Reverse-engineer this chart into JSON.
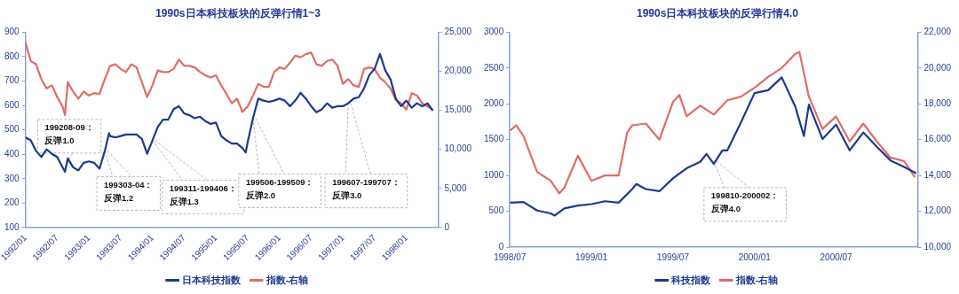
{
  "chart_data": [
    {
      "type": "line",
      "title": "1990s日本科技板块的反弹行情1~3",
      "legend": "bottom",
      "grid": false,
      "marker": "none",
      "line_style": "solid",
      "xlim": [
        "1992-01",
        "1998-07"
      ],
      "xticks": [
        {
          "value": "1992-01",
          "label": "1992/01"
        },
        {
          "value": "1992-07",
          "label": "1992/07"
        },
        {
          "value": "1993-01",
          "label": "1993/01"
        },
        {
          "value": "1993-07",
          "label": "1993/07"
        },
        {
          "value": "1994-01",
          "label": "1994/01"
        },
        {
          "value": "1994-07",
          "label": "1994/07"
        },
        {
          "value": "1995-01",
          "label": "1995/01"
        },
        {
          "value": "1995-07",
          "label": "1995/07"
        },
        {
          "value": "1996-01",
          "label": "1996/01"
        },
        {
          "value": "1996-07",
          "label": "1996/07"
        },
        {
          "value": "1997-01",
          "label": "1997/01"
        },
        {
          "value": "1997-07",
          "label": "1997/07"
        },
        {
          "value": "1998-01",
          "label": "1998/01"
        }
      ],
      "ylim": [
        100,
        900
      ],
      "yticks": [
        100,
        200,
        300,
        400,
        500,
        600,
        700,
        800,
        900
      ],
      "y2lim": [
        0,
        25000
      ],
      "y2ticks": [
        {
          "value": 0,
          "label": "0"
        },
        {
          "value": 5000,
          "label": "5,000"
        },
        {
          "value": 10000,
          "label": "10,000"
        },
        {
          "value": 15000,
          "label": "15,000"
        },
        {
          "value": 20000,
          "label": "20,000"
        },
        {
          "value": 25000,
          "label": "25,000"
        }
      ],
      "series": [
        {
          "name": "日本科技指数",
          "color": "#1b3a8f",
          "x": [
            "1992-01",
            "1992-02",
            "1992-03",
            "1992-04",
            "1992-05",
            "1992-06",
            "1992-07",
            "1992-08",
            "1992-08-15",
            "1992-09",
            "1992-10",
            "1992-11",
            "1992-12",
            "1993-01",
            "1993-02",
            "1993-03",
            "1993-04",
            "1993-04-25",
            "1993-05",
            "1993-06",
            "1993-07",
            "1993-08",
            "1993-09",
            "1993-10",
            "1993-11",
            "1993-12",
            "1994-01",
            "1994-02",
            "1994-03",
            "1994-04",
            "1994-05",
            "1994-06",
            "1994-07",
            "1994-08",
            "1994-09",
            "1994-10",
            "1994-11",
            "1994-12",
            "1995-01",
            "1995-02",
            "1995-03",
            "1995-04",
            "1995-05",
            "1995-06",
            "1995-06-20",
            "1995-07",
            "1995-08",
            "1995-09",
            "1995-10",
            "1995-11",
            "1995-12",
            "1996-01",
            "1996-02",
            "1996-03",
            "1996-04",
            "1996-05",
            "1996-06",
            "1996-07",
            "1996-08",
            "1996-09",
            "1996-10",
            "1996-11",
            "1996-12",
            "1997-01",
            "1997-02",
            "1997-03",
            "1997-04",
            "1997-05",
            "1997-06",
            "1997-07",
            "1997-08",
            "1997-09",
            "1997-10",
            "1997-11",
            "1997-12",
            "1998-01",
            "1998-02",
            "1998-03",
            "1998-04",
            "1998-05",
            "1998-06"
          ],
          "values": [
            469,
            457,
            414,
            389,
            420,
            402,
            389,
            347,
            328,
            383,
            347,
            334,
            365,
            371,
            365,
            341,
            414,
            487,
            475,
            469,
            475,
            481,
            481,
            481,
            463,
            402,
            457,
            512,
            542,
            542,
            585,
            597,
            567,
            560,
            548,
            554,
            536,
            524,
            530,
            475,
            457,
            444,
            444,
            426,
            408,
            450,
            548,
            628,
            620,
            615,
            620,
            628,
            620,
            597,
            620,
            652,
            628,
            597,
            572,
            584,
            609,
            591,
            597,
            597,
            609,
            628,
            634,
            670,
            725,
            750,
            811,
            744,
            707,
            628,
            597,
            620,
            591,
            609,
            597,
            609,
            578
          ]
        },
        {
          "name": "指数-右轴",
          "color": "#e06c66",
          "axis": "y2",
          "x": [
            "1992-01",
            "1992-02",
            "1992-03",
            "1992-04",
            "1992-05",
            "1992-06",
            "1992-07",
            "1992-08",
            "1992-08-15",
            "1992-09",
            "1992-10",
            "1992-11",
            "1992-12",
            "1993-01",
            "1993-02",
            "1993-03",
            "1993-04",
            "1993-05",
            "1993-06",
            "1993-07",
            "1993-08",
            "1993-09",
            "1993-10",
            "1993-11",
            "1993-12",
            "1994-01",
            "1994-02",
            "1994-03",
            "1994-04",
            "1994-05",
            "1994-06",
            "1994-07",
            "1994-08",
            "1994-09",
            "1994-10",
            "1994-11",
            "1994-12",
            "1995-01",
            "1995-02",
            "1995-03",
            "1995-04",
            "1995-05",
            "1995-06",
            "1995-07",
            "1995-08",
            "1995-09",
            "1995-10",
            "1995-11",
            "1995-12",
            "1996-01",
            "1996-02",
            "1996-03",
            "1996-04",
            "1996-05",
            "1996-06",
            "1996-07",
            "1996-08",
            "1996-09",
            "1996-10",
            "1996-11",
            "1996-12",
            "1997-01",
            "1997-02",
            "1997-03",
            "1997-04",
            "1997-05",
            "1997-06",
            "1997-07",
            "1997-08",
            "1997-09",
            "1997-10",
            "1997-11",
            "1997-12",
            "1998-01",
            "1998-02",
            "1998-03",
            "1998-04",
            "1998-05",
            "1998-06"
          ],
          "values": [
            23700,
            21300,
            20900,
            19000,
            17800,
            18200,
            16700,
            15500,
            14400,
            18600,
            17400,
            16500,
            17400,
            16900,
            17200,
            17100,
            19000,
            20700,
            20900,
            20300,
            19900,
            20900,
            20500,
            18600,
            16700,
            18200,
            20100,
            19900,
            19900,
            20300,
            21500,
            20700,
            20700,
            20500,
            19900,
            19500,
            19200,
            19500,
            18200,
            17100,
            15900,
            16500,
            14800,
            15500,
            16900,
            18400,
            18000,
            18000,
            19900,
            20500,
            20300,
            21100,
            22000,
            21800,
            22200,
            22400,
            20900,
            20700,
            21300,
            21500,
            20700,
            18400,
            19000,
            18200,
            18000,
            20300,
            20500,
            20300,
            19200,
            18600,
            17800,
            16300,
            15900,
            15100,
            17200,
            16900,
            15900,
            15500,
            15100
          ]
        }
      ],
      "annotations": [
        {
          "text": "199208-09：反弹1.0",
          "x": "1992-08",
          "y": 347
        },
        {
          "text": "199303-04：反弹1.2",
          "x": "1993-04",
          "y": 414
        },
        {
          "text": "199311-199406：反弹1.3",
          "x": "1994-01",
          "y": 457
        },
        {
          "text": "199506-199509：反弹2.0",
          "x": "1995-08",
          "y": 548
        },
        {
          "text": "199607-199707：反弹3.0",
          "x": "1997-02",
          "y": 609
        }
      ]
    },
    {
      "type": "line",
      "title": "1990s日本科技板块的反弹行情4.0",
      "legend": "bottom",
      "grid": false,
      "marker": "none",
      "line_style": "solid",
      "xlim": [
        "1998-07",
        "2001-01"
      ],
      "xticks": [
        {
          "value": "1998-07",
          "label": "1998/07"
        },
        {
          "value": "1999-01",
          "label": "1999/01"
        },
        {
          "value": "1999-07",
          "label": "1999/07"
        },
        {
          "value": "2000-01",
          "label": "2000/01"
        },
        {
          "value": "2000-07",
          "label": "2000/07"
        }
      ],
      "ylim": [
        0,
        3000
      ],
      "yticks": [
        0,
        500,
        1000,
        1500,
        2000,
        2500,
        3000
      ],
      "y2lim": [
        10000,
        22000
      ],
      "y2ticks": [
        {
          "value": 10000,
          "label": "10,000"
        },
        {
          "value": 12000,
          "label": "12,000"
        },
        {
          "value": 14000,
          "label": "14,000"
        },
        {
          "value": 16000,
          "label": "16,000"
        },
        {
          "value": 18000,
          "label": "18,000"
        },
        {
          "value": 20000,
          "label": "20,000"
        },
        {
          "value": 22000,
          "label": "22,000"
        }
      ],
      "series": [
        {
          "name": "科技指数",
          "color": "#1b3a8f",
          "x": [
            "1998-07",
            "1998-08",
            "1998-09",
            "1998-10",
            "1998-10-10",
            "1998-11",
            "1998-12",
            "1999-01",
            "1999-02",
            "1999-03",
            "1999-04",
            "1999-04-10",
            "1999-05",
            "1999-06",
            "1999-07",
            "1999-08",
            "1999-09",
            "1999-09-15",
            "1999-10",
            "1999-10-20",
            "1999-11",
            "1999-12",
            "2000-01",
            "2000-02",
            "2000-03",
            "2000-04",
            "2000-04-20",
            "2000-05",
            "2000-06",
            "2000-07",
            "2000-08",
            "2000-09",
            "2000-10",
            "2000-11",
            "2000-12",
            "2000-12-28"
          ],
          "values": [
            620,
            630,
            510,
            470,
            440,
            540,
            580,
            600,
            640,
            620,
            810,
            880,
            810,
            780,
            960,
            1100,
            1190,
            1300,
            1160,
            1350,
            1350,
            1740,
            2150,
            2190,
            2370,
            1960,
            1550,
            1990,
            1510,
            1710,
            1350,
            1600,
            1400,
            1210,
            1120,
            1030
          ]
        },
        {
          "name": "指数-右轴",
          "color": "#e06c66",
          "axis": "y2",
          "x": [
            "1998-07",
            "1998-07-15",
            "1998-08",
            "1998-09",
            "1998-10",
            "1998-10-20",
            "1998-11",
            "1998-12",
            "1999-01",
            "1999-02",
            "1999-03",
            "1999-03-20",
            "1999-04",
            "1999-05",
            "1999-06",
            "1999-07",
            "1999-07-15",
            "1999-08",
            "1999-09",
            "1999-10",
            "1999-11",
            "1999-12",
            "2000-01",
            "2000-02",
            "2000-03",
            "2000-04",
            "2000-04-10",
            "2000-05",
            "2000-06",
            "2000-07",
            "2000-08",
            "2000-09",
            "2000-10",
            "2000-11",
            "2000-12",
            "2000-12-25"
          ],
          "values": [
            16500,
            16800,
            16200,
            14200,
            13700,
            13000,
            13300,
            15100,
            13700,
            14000,
            14000,
            16400,
            16800,
            16900,
            16000,
            18100,
            18500,
            17300,
            17900,
            17400,
            18200,
            18400,
            18900,
            19500,
            20000,
            20800,
            20900,
            18400,
            16600,
            17300,
            15900,
            16900,
            15900,
            15000,
            14800,
            13900
          ]
        }
      ],
      "annotations": [
        {
          "text": "199810-200002：反弹4.0",
          "x": "1999-10",
          "y": 1200
        }
      ]
    }
  ]
}
